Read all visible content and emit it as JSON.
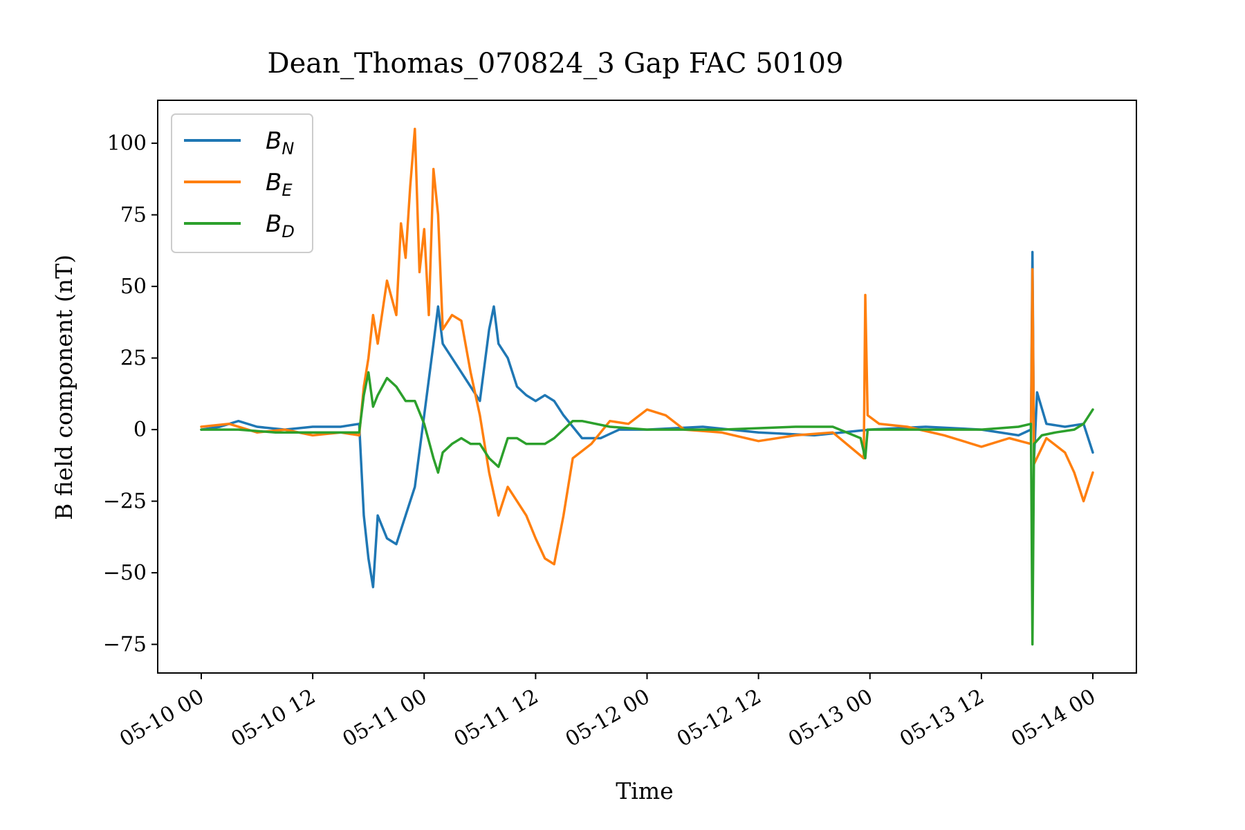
{
  "chart_data": {
    "type": "line",
    "title": "Dean_Thomas_070824_3 Gap FAC 50109",
    "xlabel": "Time",
    "ylabel": "B field component (nT)",
    "xlim": [
      "2024-05-10 00:00",
      "2024-05-14 00:00"
    ],
    "ylim": [
      -85,
      115
    ],
    "x_ticks": [
      "05-10 00",
      "05-10 12",
      "05-11 00",
      "05-11 12",
      "05-12 00",
      "05-12 12",
      "05-13 00",
      "05-13 12",
      "05-14 00"
    ],
    "y_ticks": [
      "100",
      "75",
      "50",
      "25",
      "0",
      "−25",
      "−50",
      "−75"
    ],
    "y_tick_values": [
      100,
      75,
      50,
      25,
      0,
      -25,
      -50,
      -75
    ],
    "legend": {
      "placement": "top-left"
    },
    "grid": false,
    "series": [
      {
        "name": "B_N",
        "label_main": "B",
        "label_sub": "N",
        "color": "#1f77b4",
        "points": [
          [
            "2024-05-10 00:00",
            0
          ],
          [
            "2024-05-10 02:00",
            1
          ],
          [
            "2024-05-10 04:00",
            3
          ],
          [
            "2024-05-10 06:00",
            1
          ],
          [
            "2024-05-10 09:00",
            0
          ],
          [
            "2024-05-10 12:00",
            1
          ],
          [
            "2024-05-10 15:00",
            1
          ],
          [
            "2024-05-10 17:00",
            2
          ],
          [
            "2024-05-10 17:30",
            -30
          ],
          [
            "2024-05-10 18:00",
            -45
          ],
          [
            "2024-05-10 18:30",
            -55
          ],
          [
            "2024-05-10 19:00",
            -30
          ],
          [
            "2024-05-10 20:00",
            -38
          ],
          [
            "2024-05-10 21:00",
            -40
          ],
          [
            "2024-05-10 22:00",
            -30
          ],
          [
            "2024-05-10 23:00",
            -20
          ],
          [
            "2024-05-11 00:00",
            5
          ],
          [
            "2024-05-11 01:00",
            30
          ],
          [
            "2024-05-11 01:30",
            43
          ],
          [
            "2024-05-11 02:00",
            30
          ],
          [
            "2024-05-11 03:00",
            25
          ],
          [
            "2024-05-11 04:00",
            20
          ],
          [
            "2024-05-11 05:00",
            15
          ],
          [
            "2024-05-11 06:00",
            10
          ],
          [
            "2024-05-11 07:00",
            35
          ],
          [
            "2024-05-11 07:30",
            43
          ],
          [
            "2024-05-11 08:00",
            30
          ],
          [
            "2024-05-11 09:00",
            25
          ],
          [
            "2024-05-11 10:00",
            15
          ],
          [
            "2024-05-11 11:00",
            12
          ],
          [
            "2024-05-11 12:00",
            10
          ],
          [
            "2024-05-11 13:00",
            12
          ],
          [
            "2024-05-11 14:00",
            10
          ],
          [
            "2024-05-11 15:00",
            5
          ],
          [
            "2024-05-11 17:00",
            -3
          ],
          [
            "2024-05-11 19:00",
            -3
          ],
          [
            "2024-05-11 21:00",
            0
          ],
          [
            "2024-05-12 00:00",
            0
          ],
          [
            "2024-05-12 06:00",
            1
          ],
          [
            "2024-05-12 12:00",
            -1
          ],
          [
            "2024-05-12 18:00",
            -2
          ],
          [
            "2024-05-13 00:00",
            0
          ],
          [
            "2024-05-13 06:00",
            1
          ],
          [
            "2024-05-13 12:00",
            0
          ],
          [
            "2024-05-13 16:00",
            -2
          ],
          [
            "2024-05-13 17:20",
            0
          ],
          [
            "2024-05-13 17:30",
            62
          ],
          [
            "2024-05-13 17:40",
            -10
          ],
          [
            "2024-05-13 18:00",
            13
          ],
          [
            "2024-05-13 19:00",
            2
          ],
          [
            "2024-05-13 21:00",
            1
          ],
          [
            "2024-05-13 23:00",
            2
          ],
          [
            "2024-05-14 00:00",
            -8
          ]
        ]
      },
      {
        "name": "B_E",
        "label_main": "B",
        "label_sub": "E",
        "color": "#ff7f0e",
        "points": [
          [
            "2024-05-10 00:00",
            1
          ],
          [
            "2024-05-10 03:00",
            2
          ],
          [
            "2024-05-10 06:00",
            -1
          ],
          [
            "2024-05-10 09:00",
            0
          ],
          [
            "2024-05-10 12:00",
            -2
          ],
          [
            "2024-05-10 15:00",
            -1
          ],
          [
            "2024-05-10 17:00",
            -2
          ],
          [
            "2024-05-10 17:30",
            15
          ],
          [
            "2024-05-10 18:00",
            25
          ],
          [
            "2024-05-10 18:30",
            40
          ],
          [
            "2024-05-10 19:00",
            30
          ],
          [
            "2024-05-10 20:00",
            52
          ],
          [
            "2024-05-10 21:00",
            40
          ],
          [
            "2024-05-10 21:30",
            72
          ],
          [
            "2024-05-10 22:00",
            60
          ],
          [
            "2024-05-10 22:30",
            85
          ],
          [
            "2024-05-10 23:00",
            105
          ],
          [
            "2024-05-10 23:30",
            55
          ],
          [
            "2024-05-11 00:00",
            70
          ],
          [
            "2024-05-11 00:30",
            40
          ],
          [
            "2024-05-11 01:00",
            91
          ],
          [
            "2024-05-11 01:30",
            75
          ],
          [
            "2024-05-11 02:00",
            35
          ],
          [
            "2024-05-11 03:00",
            40
          ],
          [
            "2024-05-11 04:00",
            38
          ],
          [
            "2024-05-11 05:00",
            20
          ],
          [
            "2024-05-11 06:00",
            5
          ],
          [
            "2024-05-11 07:00",
            -15
          ],
          [
            "2024-05-11 08:00",
            -30
          ],
          [
            "2024-05-11 09:00",
            -20
          ],
          [
            "2024-05-11 10:00",
            -25
          ],
          [
            "2024-05-11 11:00",
            -30
          ],
          [
            "2024-05-11 12:00",
            -38
          ],
          [
            "2024-05-11 13:00",
            -45
          ],
          [
            "2024-05-11 14:00",
            -47
          ],
          [
            "2024-05-11 15:00",
            -30
          ],
          [
            "2024-05-11 16:00",
            -10
          ],
          [
            "2024-05-11 18:00",
            -5
          ],
          [
            "2024-05-11 20:00",
            3
          ],
          [
            "2024-05-11 22:00",
            2
          ],
          [
            "2024-05-12 00:00",
            7
          ],
          [
            "2024-05-12 02:00",
            5
          ],
          [
            "2024-05-12 04:00",
            0
          ],
          [
            "2024-05-12 08:00",
            -1
          ],
          [
            "2024-05-12 12:00",
            -4
          ],
          [
            "2024-05-12 16:00",
            -2
          ],
          [
            "2024-05-12 20:00",
            -1
          ],
          [
            "2024-05-12 23:20",
            -10
          ],
          [
            "2024-05-12 23:30",
            47
          ],
          [
            "2024-05-12 23:45",
            5
          ],
          [
            "2024-05-13 01:00",
            2
          ],
          [
            "2024-05-13 04:00",
            1
          ],
          [
            "2024-05-13 08:00",
            -2
          ],
          [
            "2024-05-13 12:00",
            -6
          ],
          [
            "2024-05-13 15:00",
            -3
          ],
          [
            "2024-05-13 17:20",
            -5
          ],
          [
            "2024-05-13 17:30",
            56
          ],
          [
            "2024-05-13 17:40",
            -12
          ],
          [
            "2024-05-13 19:00",
            -3
          ],
          [
            "2024-05-13 21:00",
            -8
          ],
          [
            "2024-05-13 22:00",
            -15
          ],
          [
            "2024-05-13 23:00",
            -25
          ],
          [
            "2024-05-14 00:00",
            -15
          ]
        ]
      },
      {
        "name": "B_D",
        "label_main": "B",
        "label_sub": "D",
        "color": "#2ca02c",
        "points": [
          [
            "2024-05-10 00:00",
            0
          ],
          [
            "2024-05-10 04:00",
            0
          ],
          [
            "2024-05-10 08:00",
            -1
          ],
          [
            "2024-05-10 12:00",
            -1
          ],
          [
            "2024-05-10 15:00",
            -1
          ],
          [
            "2024-05-10 17:00",
            -1
          ],
          [
            "2024-05-10 17:30",
            12
          ],
          [
            "2024-05-10 18:00",
            20
          ],
          [
            "2024-05-10 18:30",
            8
          ],
          [
            "2024-05-10 19:00",
            12
          ],
          [
            "2024-05-10 20:00",
            18
          ],
          [
            "2024-05-10 21:00",
            15
          ],
          [
            "2024-05-10 22:00",
            10
          ],
          [
            "2024-05-10 23:00",
            10
          ],
          [
            "2024-05-11 00:00",
            2
          ],
          [
            "2024-05-11 01:00",
            -10
          ],
          [
            "2024-05-11 01:30",
            -15
          ],
          [
            "2024-05-11 02:00",
            -8
          ],
          [
            "2024-05-11 03:00",
            -5
          ],
          [
            "2024-05-11 04:00",
            -3
          ],
          [
            "2024-05-11 05:00",
            -5
          ],
          [
            "2024-05-11 06:00",
            -5
          ],
          [
            "2024-05-11 07:00",
            -10
          ],
          [
            "2024-05-11 08:00",
            -13
          ],
          [
            "2024-05-11 09:00",
            -3
          ],
          [
            "2024-05-11 10:00",
            -3
          ],
          [
            "2024-05-11 11:00",
            -5
          ],
          [
            "2024-05-11 12:00",
            -5
          ],
          [
            "2024-05-11 13:00",
            -5
          ],
          [
            "2024-05-11 14:00",
            -3
          ],
          [
            "2024-05-11 15:00",
            0
          ],
          [
            "2024-05-11 16:00",
            3
          ],
          [
            "2024-05-11 17:00",
            3
          ],
          [
            "2024-05-11 20:00",
            1
          ],
          [
            "2024-05-12 00:00",
            0
          ],
          [
            "2024-05-12 08:00",
            0
          ],
          [
            "2024-05-12 16:00",
            1
          ],
          [
            "2024-05-12 20:00",
            1
          ],
          [
            "2024-05-12 23:00",
            -3
          ],
          [
            "2024-05-12 23:30",
            -10
          ],
          [
            "2024-05-12 23:45",
            0
          ],
          [
            "2024-05-13 06:00",
            0
          ],
          [
            "2024-05-13 12:00",
            0
          ],
          [
            "2024-05-13 16:00",
            1
          ],
          [
            "2024-05-13 17:20",
            2
          ],
          [
            "2024-05-13 17:30",
            -75
          ],
          [
            "2024-05-13 17:40",
            -5
          ],
          [
            "2024-05-13 18:30",
            -2
          ],
          [
            "2024-05-13 20:00",
            -1
          ],
          [
            "2024-05-13 22:00",
            0
          ],
          [
            "2024-05-13 23:00",
            2
          ],
          [
            "2024-05-14 00:00",
            7
          ]
        ]
      }
    ]
  }
}
